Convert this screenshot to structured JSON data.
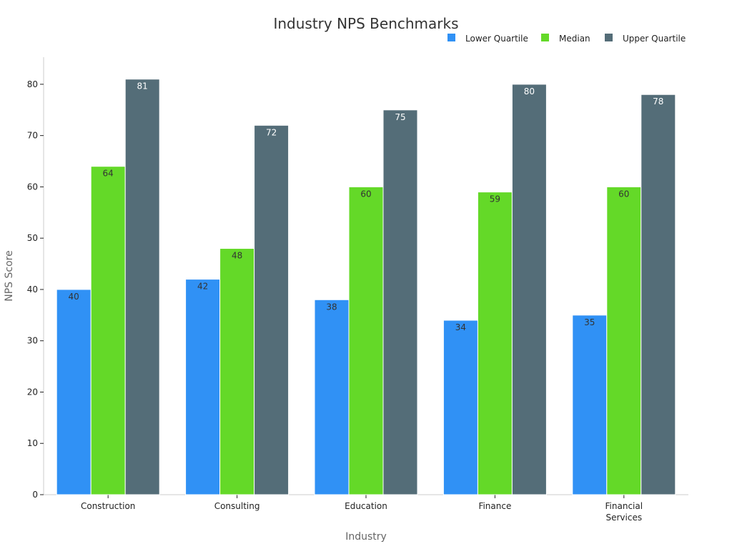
{
  "chart_data": {
    "type": "bar",
    "title": "Industry NPS Benchmarks",
    "xlabel": "Industry",
    "ylabel": "NPS Score",
    "categories": [
      "Construction",
      "Consulting",
      "Education",
      "Finance",
      "Financial Services"
    ],
    "category_lines": [
      [
        "Construction"
      ],
      [
        "Consulting"
      ],
      [
        "Education"
      ],
      [
        "Finance"
      ],
      [
        "Financial",
        "Services"
      ]
    ],
    "series": [
      {
        "name": "Lower Quartile",
        "color": "#3091f5",
        "values": [
          40,
          42,
          38,
          34,
          35
        ]
      },
      {
        "name": "Median",
        "color": "#64d928",
        "values": [
          64,
          48,
          60,
          59,
          60
        ]
      },
      {
        "name": "Upper Quartile",
        "color": "#546d78",
        "values": [
          81,
          72,
          75,
          80,
          78
        ]
      }
    ],
    "ylim": [
      0,
      85
    ],
    "yticks": [
      0,
      10,
      20,
      30,
      40,
      50,
      60,
      70,
      80
    ],
    "grid": false,
    "legend_position": "top-right",
    "data_labels": true
  }
}
